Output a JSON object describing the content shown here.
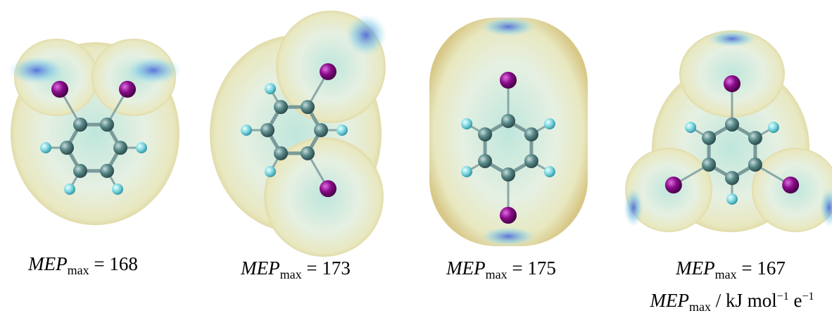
{
  "panels": [
    {
      "symbol": "MEP",
      "subscript": "max",
      "value": "= 168"
    },
    {
      "symbol": "MEP",
      "subscript": "max",
      "value": "= 173"
    },
    {
      "symbol": "MEP",
      "subscript": "max",
      "value": "= 175"
    },
    {
      "symbol": "MEP",
      "subscript": "max",
      "value": "= 167"
    }
  ],
  "caption": {
    "symbol": "MEP",
    "subscript": "max",
    "unit": "/ kJ mol",
    "exp1": "−1",
    "unit2": "e",
    "exp2": "−1"
  }
}
